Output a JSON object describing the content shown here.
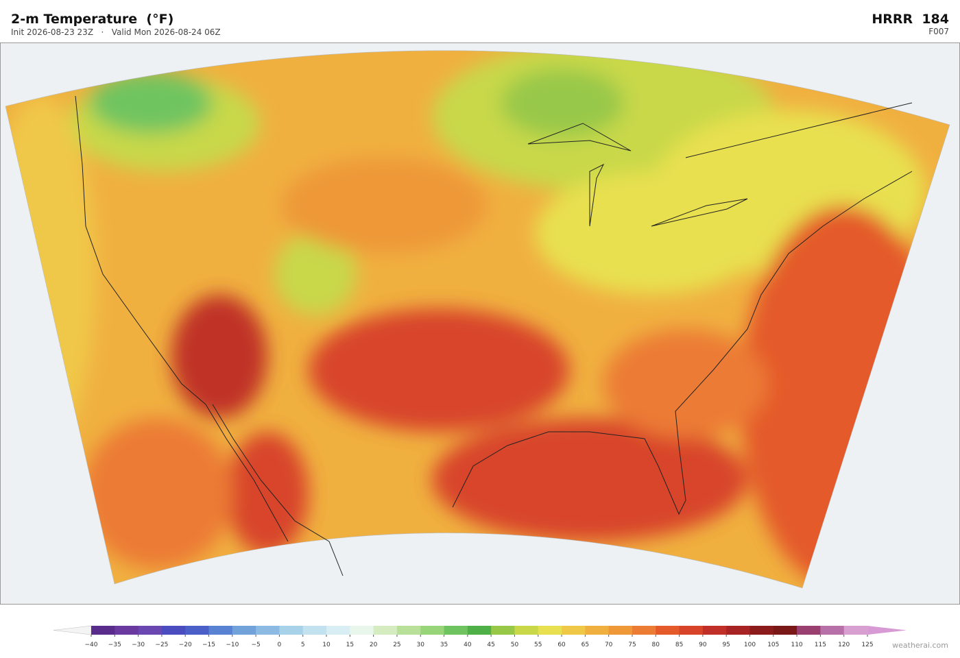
{
  "header": {
    "title": "2-m Temperature  (°F)",
    "subtitle": "Init 2026-08-23 23Z   ·   Valid Mon 2026-08-24 06Z",
    "model": "HRRR  184",
    "forecast_hour": "F007"
  },
  "colorbar": {
    "ticks": [
      {
        "value": -40,
        "label": "−40"
      },
      {
        "value": -35,
        "label": "−35"
      },
      {
        "value": -30,
        "label": "−30"
      },
      {
        "value": -25,
        "label": "−25"
      },
      {
        "value": -20,
        "label": "−20"
      },
      {
        "value": -15,
        "label": "−15"
      },
      {
        "value": -10,
        "label": "−10"
      },
      {
        "value": -5,
        "label": "−5"
      },
      0,
      5,
      10,
      15,
      20,
      25,
      30,
      35,
      40,
      45,
      50,
      55,
      60,
      65,
      70,
      75,
      80,
      85,
      90,
      95,
      100,
      105,
      110,
      115,
      120,
      125
    ],
    "colors": [
      "#5a2d8c",
      "#6a3aa0",
      "#6b47b2",
      "#4a4cc0",
      "#4a60c8",
      "#5a82d2",
      "#72a2da",
      "#8cbae2",
      "#a8d2ea",
      "#c2e2f0",
      "#d8eef4",
      "#e8f6ec",
      "#d4ecc0",
      "#b8e098",
      "#98d478",
      "#70c460",
      "#50b048",
      "#98c848",
      "#c8d848",
      "#e8e050",
      "#f0c848",
      "#f0b040",
      "#ee9838",
      "#ec7c34",
      "#e45a2a",
      "#d8442a",
      "#c03028",
      "#a82424",
      "#8c1c1c",
      "#7a1818",
      "#9a4070",
      "#b870a8",
      "#d8a0d0"
    ],
    "under_color": "#f4f4f4",
    "over_color": "#d89ad4"
  },
  "footer": {
    "credit": "weatherai.com"
  }
}
